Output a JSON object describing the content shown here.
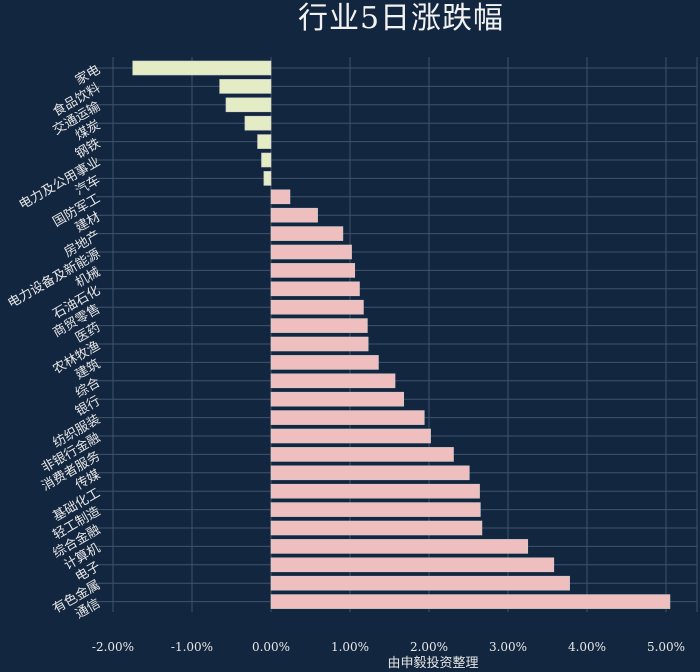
{
  "chart_data": {
    "type": "bar",
    "orientation": "horizontal",
    "title": "行业5日涨跌幅",
    "xlabel": "由申毅投资整理",
    "ylabel": "",
    "xlim": [
      -2.2,
      5.15
    ],
    "xticks": [
      -2,
      -1,
      0,
      1,
      2,
      3,
      4,
      5
    ],
    "xtick_labels": [
      "-2.00%",
      "-1.00%",
      "0.00%",
      "1.00%",
      "2.00%",
      "3.00%",
      "4.00%",
      "5.00%"
    ],
    "grid": true,
    "categories": [
      "家电",
      "食品饮料",
      "交通运输",
      "煤炭",
      "钢铁",
      "电力及公用事业",
      "汽车",
      "国防军工",
      "建材",
      "房地产",
      "电力设备及新能源",
      "机械",
      "石油石化",
      "商贸零售",
      "医药",
      "农林牧渔",
      "建筑",
      "综合",
      "银行",
      "纺织服装",
      "非银行金融",
      "消费者服务",
      "传媒",
      "基础化工",
      "轻工制造",
      "综合金融",
      "计算机",
      "电子",
      "有色金属",
      "通信"
    ],
    "values": [
      -1.75,
      -0.65,
      -0.57,
      -0.33,
      -0.17,
      -0.12,
      -0.09,
      0.24,
      0.59,
      0.91,
      1.02,
      1.06,
      1.12,
      1.17,
      1.22,
      1.23,
      1.36,
      1.57,
      1.68,
      1.94,
      2.02,
      2.31,
      2.51,
      2.64,
      2.65,
      2.67,
      3.25,
      3.58,
      3.78,
      5.05
    ],
    "colors": {
      "negative": "#e3ecc4",
      "positive": "#efbfbf",
      "background": "#13263f",
      "grid": "#3f536d",
      "bar_edge": "#cfcfcf"
    }
  }
}
